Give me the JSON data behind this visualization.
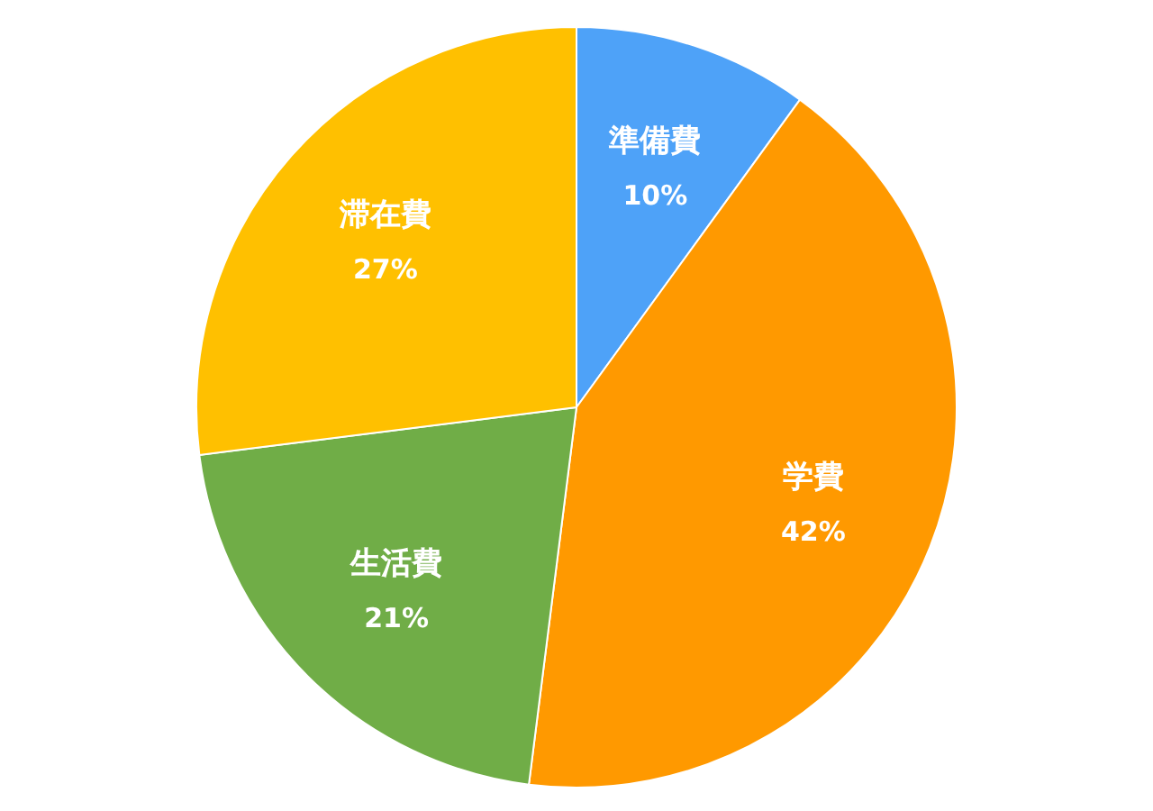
{
  "chart_data": {
    "type": "pie",
    "categories": [
      "準備費",
      "学費",
      "生活費",
      "滞在費"
    ],
    "values": [
      10,
      42,
      21,
      27
    ],
    "colors": [
      "#4ea2f8",
      "#ff9900",
      "#70ad47",
      "#ffc000"
    ],
    "value_labels": [
      "10%",
      "42%",
      "21%",
      "27%"
    ],
    "legend": false
  }
}
